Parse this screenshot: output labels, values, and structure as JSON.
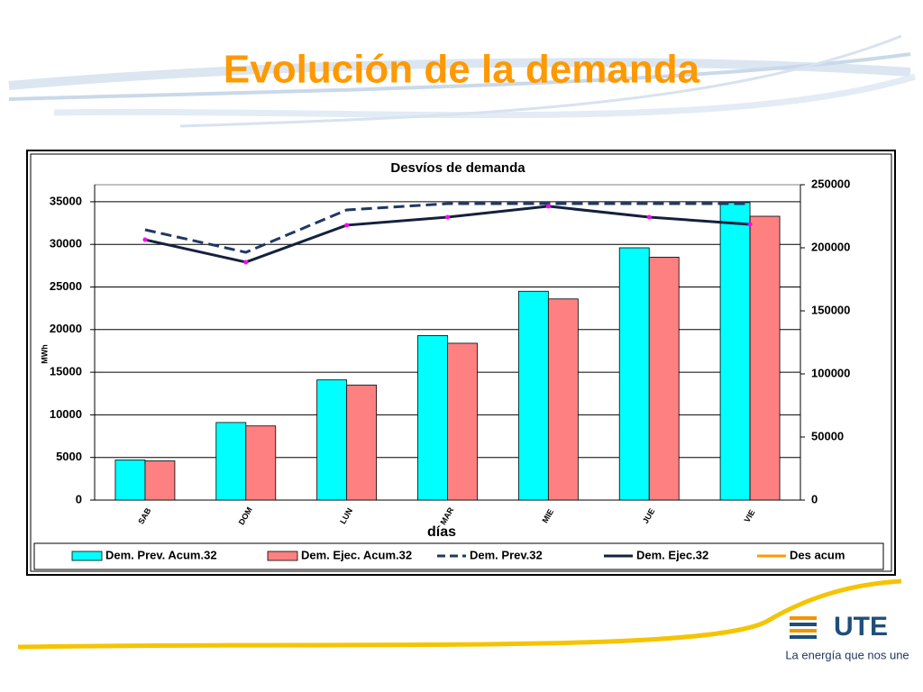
{
  "title": "Evolución de la demanda",
  "logo": {
    "text": "UTE",
    "tagline": "La energía que nos une"
  },
  "chart_data": {
    "type": "bar",
    "title": "Desvíos de demanda",
    "x_label": "días",
    "y_label": "MWh",
    "categories": [
      "SAB",
      "DOM",
      "LUN",
      "MAR",
      "MIE",
      "JUE",
      "VIE"
    ],
    "series": [
      {
        "name": "Dem. Prev. Acum.32",
        "type": "bar",
        "color": "#00ffff",
        "values": [
          4700,
          9100,
          14100,
          19300,
          24500,
          29600,
          34900
        ]
      },
      {
        "name": "Dem. Ejec. Acum.32",
        "type": "bar",
        "color": "#ff8080",
        "values": [
          4600,
          8700,
          13500,
          18400,
          23600,
          28500,
          33300
        ]
      },
      {
        "name": "Dem. Prev.32",
        "type": "line",
        "axis": "y2",
        "color": "#1f3864",
        "style": "dashed",
        "values": [
          214300,
          196400,
          230000,
          235000,
          235000,
          235000,
          235000
        ]
      },
      {
        "name": "Dem. Ejec.32",
        "type": "line",
        "axis": "y2",
        "color": "#14213d",
        "style": "solid",
        "marker_color": "#ff00ff",
        "values": [
          206400,
          188600,
          217900,
          224300,
          232900,
          224300,
          218600
        ]
      },
      {
        "name": "Des acum",
        "type": "line",
        "axis": "y2",
        "color": "#ff9900",
        "style": "solid",
        "values": [
          null,
          null,
          null,
          null,
          null,
          null,
          null
        ]
      }
    ],
    "ylim": [
      0,
      37000
    ],
    "yticks": [
      0,
      5000,
      10000,
      15000,
      20000,
      25000,
      30000,
      35000
    ],
    "y2lim": [
      0,
      250000
    ],
    "y2ticks": [
      0,
      50000,
      100000,
      150000,
      200000,
      250000
    ],
    "grid": true,
    "legend": "bottom"
  }
}
